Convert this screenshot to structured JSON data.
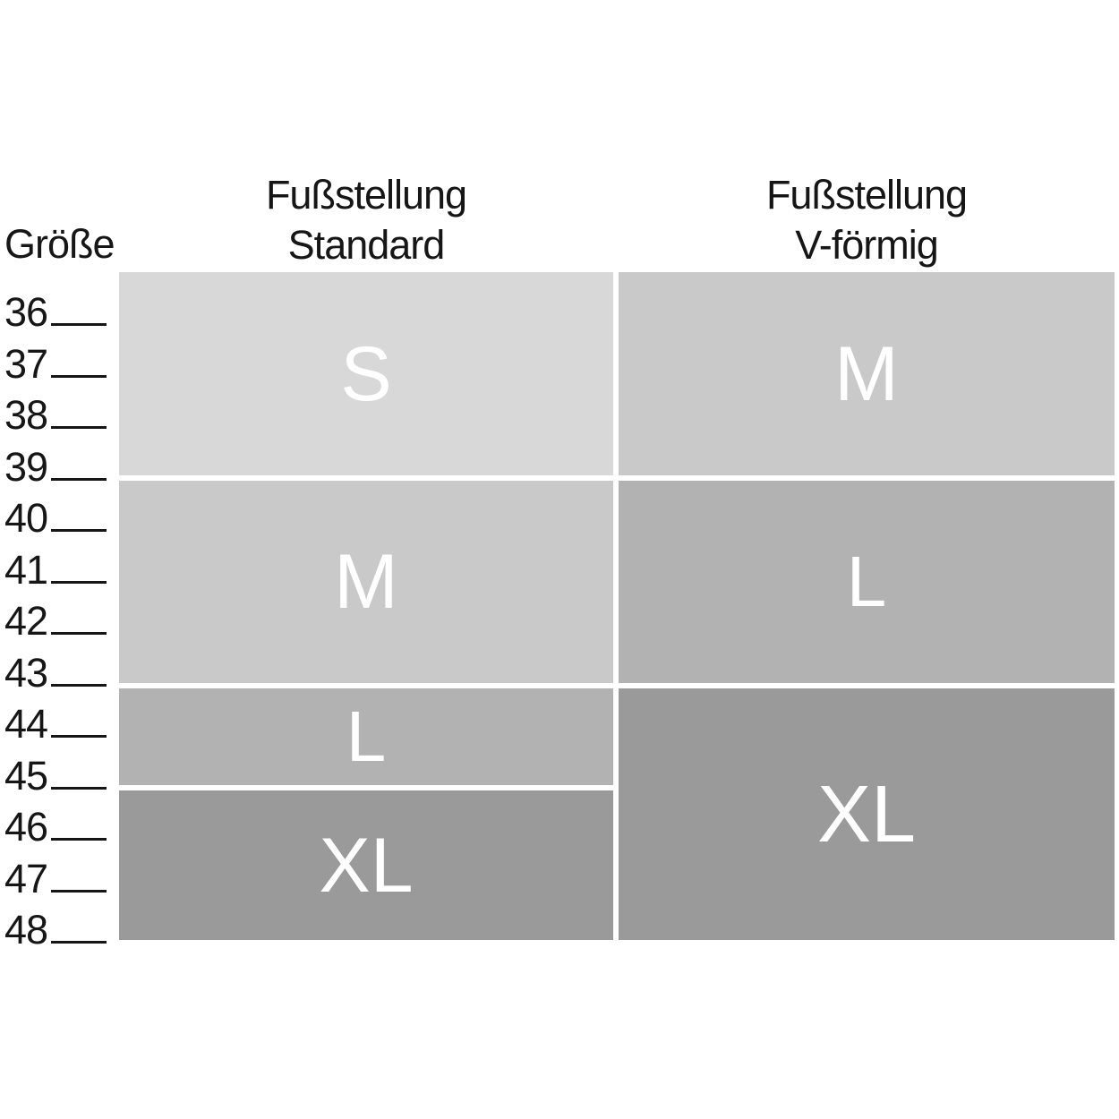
{
  "axis": {
    "label": "Größe",
    "sizes": [
      "36",
      "37",
      "38",
      "39",
      "40",
      "41",
      "42",
      "43",
      "44",
      "45",
      "46",
      "47",
      "48"
    ]
  },
  "columns": [
    {
      "id": "standard",
      "header_line1": "Fußstellung",
      "header_line2": "Standard",
      "blocks": [
        {
          "label": "S",
          "size_range": "36–39",
          "color": "#d8d8d8"
        },
        {
          "label": "M",
          "size_range": "40–43",
          "color": "#c9c9c9"
        },
        {
          "label": "L",
          "size_range": "44–45",
          "color": "#b2b2b2"
        },
        {
          "label": "XL",
          "size_range": "46–48",
          "color": "#9a9a9a"
        }
      ]
    },
    {
      "id": "v-foermig",
      "header_line1": "Fußstellung",
      "header_line2": "V-förmig",
      "blocks": [
        {
          "label": "M",
          "size_range": "36–39",
          "color": "#c9c9c9"
        },
        {
          "label": "L",
          "size_range": "40–43",
          "color": "#b2b2b2"
        },
        {
          "label": "XL",
          "size_range": "44–48",
          "color": "#9a9a9a"
        }
      ]
    }
  ],
  "colors": {
    "background": "#ffffff",
    "text": "#161616",
    "block_letter": "#ffffff",
    "divider": "#ffffff"
  },
  "chart_data": {
    "type": "table",
    "title": "",
    "y_axis_label": "Größe",
    "y_ticks": [
      36,
      37,
      38,
      39,
      40,
      41,
      42,
      43,
      44,
      45,
      46,
      47,
      48
    ],
    "legend_position": "none",
    "grid": false,
    "series": [
      {
        "name": "Fußstellung Standard",
        "segments": [
          {
            "size": "S",
            "from": 36,
            "to": 39
          },
          {
            "size": "M",
            "from": 40,
            "to": 43
          },
          {
            "size": "L",
            "from": 44,
            "to": 45
          },
          {
            "size": "XL",
            "from": 46,
            "to": 48
          }
        ]
      },
      {
        "name": "Fußstellung V-förmig",
        "segments": [
          {
            "size": "M",
            "from": 36,
            "to": 39
          },
          {
            "size": "L",
            "from": 40,
            "to": 43
          },
          {
            "size": "XL",
            "from": 44,
            "to": 48
          }
        ]
      }
    ],
    "size_colors": {
      "S": "#d8d8d8",
      "M": "#c9c9c9",
      "L": "#b2b2b2",
      "XL": "#9a9a9a"
    }
  }
}
